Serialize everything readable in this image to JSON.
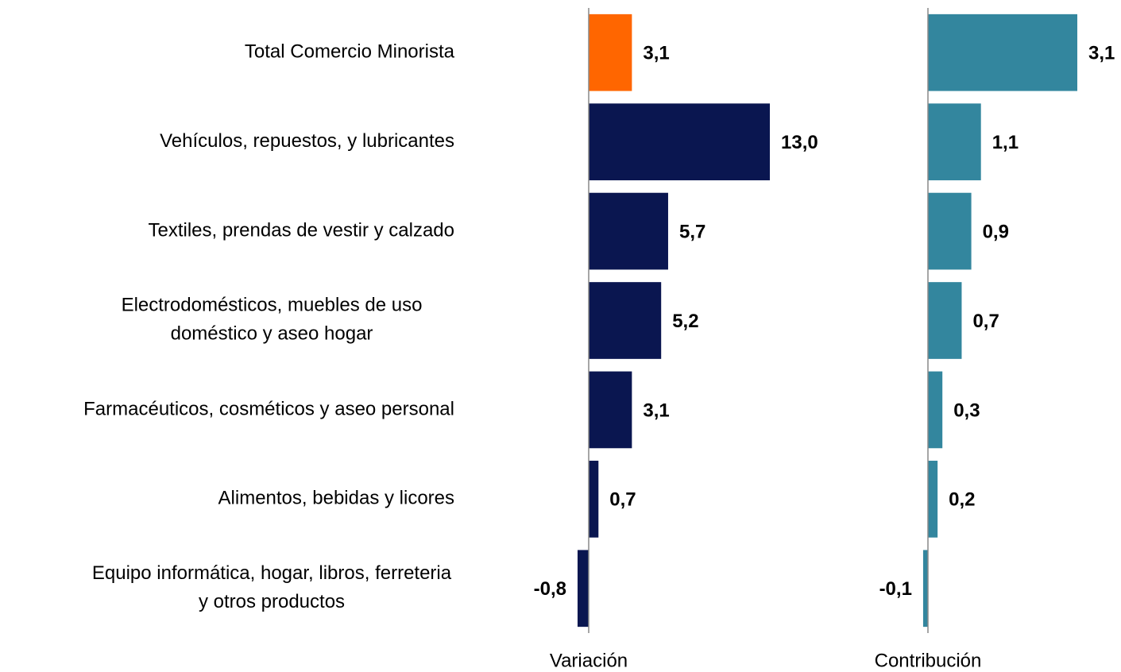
{
  "chart_data": [
    {
      "type": "barh",
      "xlabel": "Variación",
      "categories": [
        "Total Comercio Minorista",
        "Vehículos, repuestos, y lubricantes",
        "Textiles, prendas de vestir y calzado",
        "Electrodomésticos, muebles de uso doméstico y aseo hogar",
        "Farmacéuticos, cosméticos y aseo personal",
        "Alimentos, bebidas y licores",
        "Equipo informática, hogar, libros, ferreteria y otros productos"
      ],
      "values": [
        3.1,
        13.0,
        5.7,
        5.2,
        3.1,
        0.7,
        -0.8
      ],
      "value_labels": [
        "3,1",
        "13,0",
        "5,7",
        "5,2",
        "3,1",
        "0,7",
        "-0,8"
      ],
      "colors": [
        "#ff6600",
        "#0a1650",
        "#0a1650",
        "#0a1650",
        "#0a1650",
        "#0a1650",
        "#0a1650"
      ],
      "xlim": [
        -1,
        14
      ]
    },
    {
      "type": "barh",
      "xlabel": "Contribución",
      "values": [
        3.1,
        1.1,
        0.9,
        0.7,
        0.3,
        0.2,
        -0.1
      ],
      "value_labels": [
        "3,1",
        "1,1",
        "0,9",
        "0,7",
        "0,3",
        "0,2",
        "-0,1"
      ],
      "color": "#33869e",
      "xlim": [
        -0.2,
        3.5
      ]
    }
  ]
}
